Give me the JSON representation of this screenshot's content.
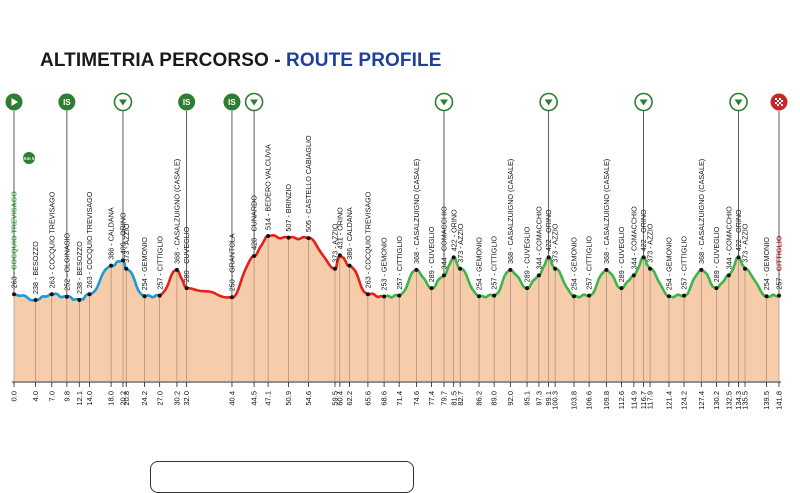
{
  "title": {
    "part1": "ALTIMETRIA PERCORSO -",
    "part2": "ROUTE PROFILE"
  },
  "colors": {
    "fill": "#f7ccaa",
    "start": "#1a9ad6",
    "red": "#e2231a",
    "green": "#3db649",
    "accent_blue": "#1f3f9c",
    "icon_green": "#2e7d32",
    "finish": "#c62828"
  },
  "icons": [
    {
      "type": "start",
      "km": 0.0
    },
    {
      "type": "km0",
      "km": 0.0,
      "label": "Km 0"
    },
    {
      "type": "IS",
      "km": 9.8,
      "label": "IS"
    },
    {
      "type": "gpm",
      "km": 20.2
    },
    {
      "type": "IS",
      "km": 32.0,
      "label": "IS"
    },
    {
      "type": "IS",
      "km": 40.4,
      "label": "IS"
    },
    {
      "type": "gpm",
      "km": 44.5
    },
    {
      "type": "gpm",
      "km": 79.7
    },
    {
      "type": "gpm",
      "km": 99.1
    },
    {
      "type": "gpm",
      "km": 116.7
    },
    {
      "type": "gpm",
      "km": 134.3
    },
    {
      "type": "finish",
      "km": 141.8
    }
  ],
  "chart_data": {
    "type": "area",
    "title": "ALTIMETRIA PERCORSO - ROUTE PROFILE",
    "xlabel": "",
    "ylabel": "",
    "xlim": [
      0,
      141.8
    ],
    "km_ticks": [
      "0.0",
      "4.0",
      "7.0",
      "9.8",
      "12.1",
      "14.0",
      "18.0",
      "20.2",
      "20.8",
      "24.2",
      "27.0",
      "30.2",
      "32.0",
      "40.4",
      "44.5",
      "47.1",
      "50.9",
      "54.6",
      "59.5",
      "60.4",
      "62.2",
      "65.6",
      "68.6",
      "71.4",
      "74.6",
      "77.4",
      "79.7",
      "81.5",
      "82.7",
      "86.2",
      "89.0",
      "92.0",
      "95.1",
      "97.3",
      "99.1",
      "100.3",
      "103.8",
      "106.6",
      "109.8",
      "112.6",
      "114.9",
      "116.7",
      "117.9",
      "121.4",
      "124.2",
      "127.4",
      "130.2",
      "132.5",
      "134.3",
      "135.5",
      "139.5",
      "141.8"
    ],
    "points": [
      {
        "km": 0.0,
        "alt": 263,
        "name": "COCQUIO TREVISAGO",
        "color": "start"
      },
      {
        "km": 4.0,
        "alt": 238,
        "name": "BESOZZO",
        "color": "start"
      },
      {
        "km": 7.0,
        "alt": 263,
        "name": "COCQUIO TREVISAGO",
        "color": "start"
      },
      {
        "km": 9.8,
        "alt": 252,
        "name": "OLGINASIO",
        "color": "start"
      },
      {
        "km": 12.1,
        "alt": 238,
        "name": "BESOZZO",
        "color": "start"
      },
      {
        "km": 14.0,
        "alt": 263,
        "name": "COCQUIO TREVISAGO",
        "color": "start"
      },
      {
        "km": 18.0,
        "alt": 386,
        "name": "CALDANA",
        "color": "start"
      },
      {
        "km": 20.2,
        "alt": 409,
        "name": "ORINO",
        "color": "start"
      },
      {
        "km": 20.8,
        "alt": 373,
        "name": "AZZIO",
        "color": "start"
      },
      {
        "km": 24.2,
        "alt": 254,
        "name": "GEMONIO",
        "color": "start"
      },
      {
        "km": 27.0,
        "alt": 257,
        "name": "CITTIGLIO",
        "color": "red"
      },
      {
        "km": 30.2,
        "alt": 368,
        "name": "CASALZUIGNO (CASALE)",
        "color": "red"
      },
      {
        "km": 32.0,
        "alt": 289,
        "name": "CUVEGLIO",
        "color": "red"
      },
      {
        "km": 40.4,
        "alt": 250,
        "name": "GRANTOLA",
        "color": "red"
      },
      {
        "km": 44.5,
        "alt": 428,
        "name": "CUNARDO",
        "color": "red"
      },
      {
        "km": 47.1,
        "alt": 514,
        "name": "BEDERO VALCUVIA",
        "color": "red"
      },
      {
        "km": 50.9,
        "alt": 507,
        "name": "BRINZIO",
        "color": "red"
      },
      {
        "km": 54.6,
        "alt": 505,
        "name": "CASTELLO CABIAGLIO",
        "color": "red"
      },
      {
        "km": 59.5,
        "alt": 373,
        "name": "AZZIO",
        "color": "red"
      },
      {
        "km": 60.4,
        "alt": 431,
        "name": "ORINO",
        "color": "red"
      },
      {
        "km": 62.2,
        "alt": 386,
        "name": "CALDANA",
        "color": "red"
      },
      {
        "km": 65.6,
        "alt": 263,
        "name": "COCQUIO TREVISAGO",
        "color": "red"
      },
      {
        "km": 68.6,
        "alt": 253,
        "name": "GEMONIO",
        "color": "green"
      },
      {
        "km": 71.4,
        "alt": 257,
        "name": "CITTIGLIO",
        "color": "green"
      },
      {
        "km": 74.6,
        "alt": 368,
        "name": "CASALZUIGNO (CASALE)",
        "color": "green"
      },
      {
        "km": 77.4,
        "alt": 289,
        "name": "CUVEGLIO",
        "color": "green"
      },
      {
        "km": 79.7,
        "alt": 344,
        "name": "COMACCHIO",
        "color": "green"
      },
      {
        "km": 81.5,
        "alt": 422,
        "name": "ORINO",
        "color": "green"
      },
      {
        "km": 82.7,
        "alt": 373,
        "name": "AZZIO",
        "color": "green"
      },
      {
        "km": 86.2,
        "alt": 254,
        "name": "GEMONIO",
        "color": "green"
      },
      {
        "km": 89.0,
        "alt": 257,
        "name": "CITTIGLIO",
        "color": "green"
      },
      {
        "km": 92.0,
        "alt": 368,
        "name": "CASALZUIGNO (CASALE)",
        "color": "green"
      },
      {
        "km": 95.1,
        "alt": 289,
        "name": "CUVEGLIO",
        "color": "green"
      },
      {
        "km": 97.3,
        "alt": 344,
        "name": "COMACCHIO",
        "color": "green"
      },
      {
        "km": 99.1,
        "alt": 422,
        "name": "ORINO",
        "color": "green"
      },
      {
        "km": 100.3,
        "alt": 373,
        "name": "AZZIO",
        "color": "green"
      },
      {
        "km": 103.8,
        "alt": 254,
        "name": "GEMONIO",
        "color": "green"
      },
      {
        "km": 106.6,
        "alt": 257,
        "name": "CITTIGLIO",
        "color": "green"
      },
      {
        "km": 109.8,
        "alt": 368,
        "name": "CASALZUIGNO (CASALE)",
        "color": "green"
      },
      {
        "km": 112.6,
        "alt": 289,
        "name": "CUVEGLIO",
        "color": "green"
      },
      {
        "km": 114.9,
        "alt": 344,
        "name": "COMACCHIO",
        "color": "green"
      },
      {
        "km": 116.7,
        "alt": 422,
        "name": "ORINO",
        "color": "green"
      },
      {
        "km": 117.9,
        "alt": 373,
        "name": "AZZIO",
        "color": "green"
      },
      {
        "km": 121.4,
        "alt": 254,
        "name": "GEMONIO",
        "color": "green"
      },
      {
        "km": 124.2,
        "alt": 257,
        "name": "CITTIGLIO",
        "color": "green"
      },
      {
        "km": 127.4,
        "alt": 368,
        "name": "CASALZUIGNO (CASALE)",
        "color": "green"
      },
      {
        "km": 130.2,
        "alt": 289,
        "name": "CUVEGLIO",
        "color": "green"
      },
      {
        "km": 132.5,
        "alt": 344,
        "name": "COMACCHIO",
        "color": "green"
      },
      {
        "km": 134.3,
        "alt": 422,
        "name": "ORINO",
        "color": "green"
      },
      {
        "km": 135.5,
        "alt": 373,
        "name": "AZZIO",
        "color": "green"
      },
      {
        "km": 139.5,
        "alt": 254,
        "name": "GEMONIO",
        "color": "green"
      },
      {
        "km": 141.8,
        "alt": 257,
        "name": "CITTIGLIO",
        "color": "green"
      }
    ]
  }
}
